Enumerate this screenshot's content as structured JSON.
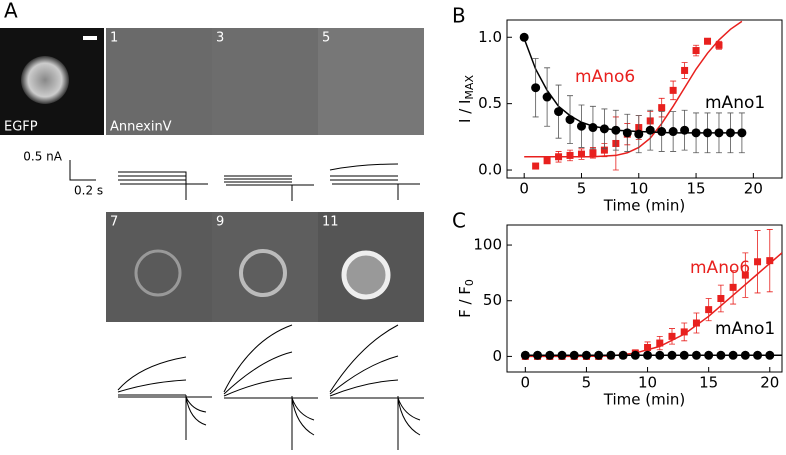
{
  "panel_a": {
    "label": "A",
    "egfp": "EGFP",
    "annexin": "AnnexinV",
    "frames": [
      "1",
      "3",
      "5",
      "7",
      "9",
      "11"
    ],
    "scale_current": "0.5 nA",
    "scale_time": "0.2 s"
  },
  "chart_data": [
    {
      "type": "scatter",
      "panel": "B",
      "xlabel": "Time (min)",
      "ylabel": "I / I",
      "ylabel_sub": "MAX",
      "xlim": [
        -1.5,
        22.5
      ],
      "xticks": [
        0,
        5,
        10,
        15,
        20
      ],
      "ylim": [
        -0.06,
        1.13
      ],
      "yticks": [
        {
          "value": 0,
          "label": "0.0"
        },
        {
          "value": 0.5,
          "label": "0.5"
        },
        {
          "value": 1,
          "label": "1.0"
        }
      ],
      "series": [
        {
          "name": "mAno6",
          "color": "#e8201e",
          "marker": "square",
          "x": [
            1,
            2,
            3,
            4,
            5,
            6,
            7,
            8,
            9,
            10,
            11,
            12,
            13,
            14,
            15,
            16,
            17
          ],
          "values": [
            0.03,
            0.07,
            0.1,
            0.11,
            0.12,
            0.13,
            0.15,
            0.2,
            0.27,
            0.32,
            0.37,
            0.47,
            0.6,
            0.75,
            0.9,
            0.97,
            0.94
          ],
          "errors": [
            0.01,
            0.02,
            0.04,
            0.04,
            0.04,
            0.04,
            0.05,
            0.2,
            0.08,
            0.09,
            0.07,
            0.07,
            0.07,
            0.06,
            0.04,
            0.02,
            0.03
          ],
          "fit_x": [
            0,
            4,
            6,
            8,
            9,
            10,
            11,
            12,
            13,
            14,
            15,
            16,
            17,
            18,
            19
          ],
          "fit_values": [
            0.1,
            0.1,
            0.1,
            0.11,
            0.13,
            0.17,
            0.24,
            0.35,
            0.48,
            0.62,
            0.76,
            0.88,
            0.98,
            1.06,
            1.12
          ]
        },
        {
          "name": "mAno1",
          "color": "#000000",
          "marker": "circle",
          "x": [
            0,
            1,
            2,
            3,
            4,
            5,
            6,
            7,
            8,
            9,
            10,
            11,
            12,
            13,
            14,
            15,
            16,
            17,
            18,
            19
          ],
          "values": [
            1.0,
            0.62,
            0.55,
            0.44,
            0.38,
            0.33,
            0.32,
            0.31,
            0.3,
            0.28,
            0.27,
            0.3,
            0.29,
            0.29,
            0.3,
            0.28,
            0.28,
            0.28,
            0.28,
            0.28
          ],
          "errors": [
            0,
            0.22,
            0.22,
            0.2,
            0.18,
            0.16,
            0.16,
            0.15,
            0.15,
            0.14,
            0.14,
            0.15,
            0.15,
            0.15,
            0.15,
            0.15,
            0.15,
            0.15,
            0.15,
            0.15
          ],
          "fit_x": [
            0,
            1,
            2,
            3,
            4,
            5,
            6,
            8,
            10,
            13,
            16,
            19
          ],
          "fit_values": [
            0.99,
            0.76,
            0.6,
            0.48,
            0.41,
            0.36,
            0.33,
            0.3,
            0.29,
            0.28,
            0.28,
            0.28
          ]
        }
      ]
    },
    {
      "type": "scatter",
      "panel": "C",
      "xlabel": "Time (min)",
      "ylabel": "F / F",
      "ylabel_sub": "0",
      "xlim": [
        -1.5,
        21
      ],
      "xticks": [
        0,
        5,
        10,
        15,
        20
      ],
      "ylim": [
        -14,
        118
      ],
      "yticks": [
        0,
        50,
        100
      ],
      "series": [
        {
          "name": "mAno6",
          "color": "#e8201e",
          "marker": "square",
          "x": [
            0,
            1,
            2,
            3,
            4,
            5,
            6,
            7,
            8,
            9,
            10,
            11,
            12,
            13,
            14,
            15,
            16,
            17,
            18,
            19,
            20
          ],
          "values": [
            0,
            0,
            0,
            0,
            0,
            0,
            0,
            0.5,
            1,
            3,
            8,
            12,
            18,
            22,
            30,
            42,
            52,
            62,
            73,
            85,
            86
          ],
          "errors": [
            0,
            0,
            0,
            0,
            0,
            0,
            0.5,
            1,
            2,
            3,
            5,
            6,
            7,
            8,
            9,
            10,
            12,
            15,
            20,
            28,
            28
          ],
          "fit_x": [
            0,
            5,
            7,
            9,
            11,
            13,
            15,
            17,
            19,
            21
          ],
          "fit_values": [
            0,
            0,
            0.5,
            3,
            9,
            20,
            36,
            55,
            74,
            93
          ]
        },
        {
          "name": "mAno1",
          "color": "#000000",
          "marker": "circle",
          "x": [
            0,
            1,
            2,
            3,
            4,
            5,
            6,
            7,
            8,
            9,
            10,
            11,
            12,
            13,
            14,
            15,
            16,
            17,
            18,
            19,
            20
          ],
          "values": [
            1,
            1,
            1,
            1,
            1,
            1,
            1,
            1,
            1,
            1,
            1,
            1,
            1,
            1,
            1,
            1,
            1,
            1,
            1,
            1,
            1
          ],
          "errors": [
            0,
            0,
            0,
            0,
            0,
            0,
            0,
            0,
            0,
            0,
            0,
            0,
            0,
            0,
            0,
            0,
            0,
            0,
            0,
            0,
            0
          ],
          "fit_x": [
            0,
            21
          ],
          "fit_values": [
            1,
            1
          ]
        }
      ]
    }
  ]
}
